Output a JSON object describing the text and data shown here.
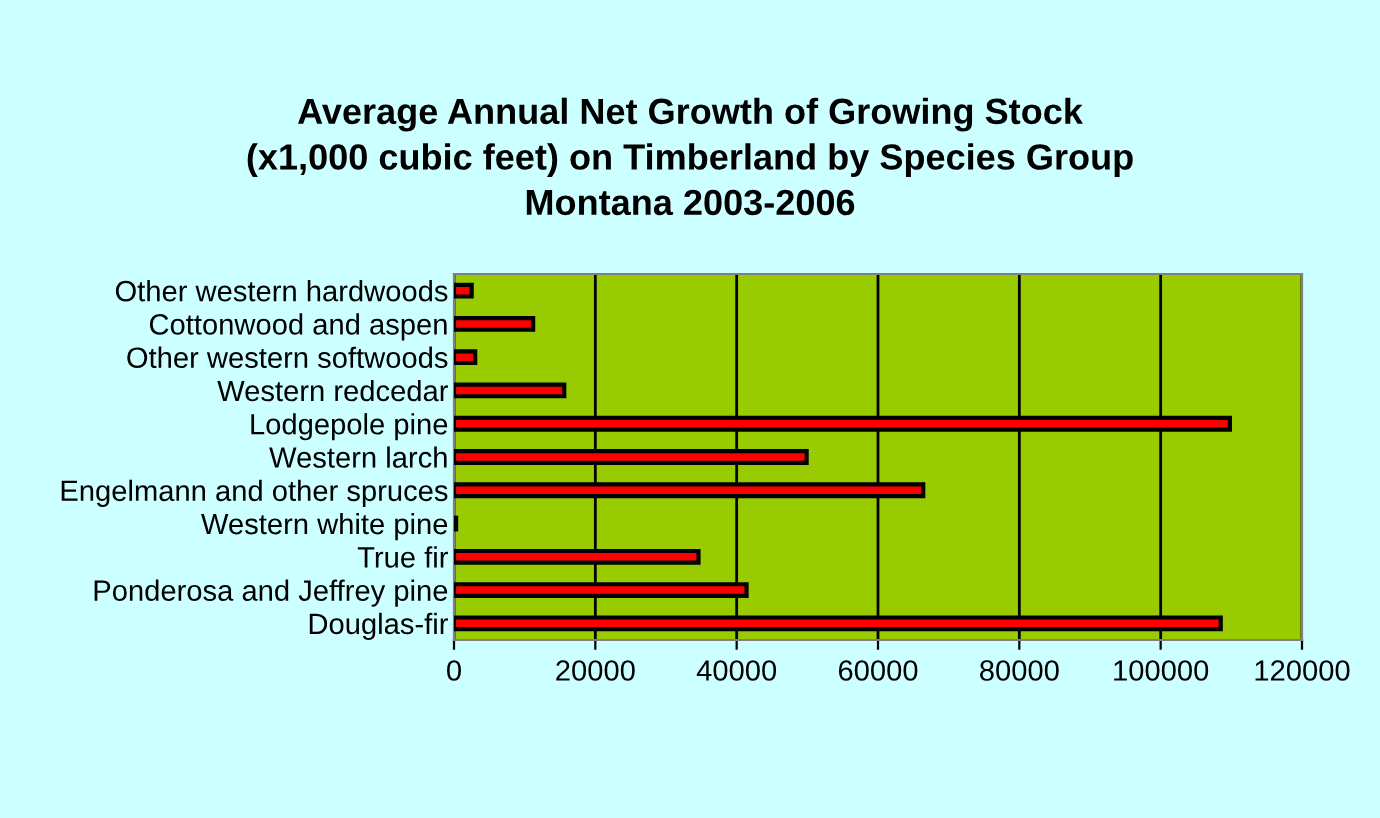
{
  "chart_data": {
    "type": "bar",
    "orientation": "horizontal",
    "title": "Average Annual Net Growth of Growing Stock\n(x1,000 cubic feet) on Timberland by Species Group\nMontana 2003-2006",
    "categories": [
      "Other western hardwoods",
      "Cottonwood and aspen",
      "Other western softwoods",
      "Western redcedar",
      "Lodgepole pine",
      "Western larch",
      "Engelmann and other spruces",
      "Western white pine",
      "True fir",
      "Ponderosa and Jeffrey pine",
      "Douglas-fir"
    ],
    "values": [
      2500,
      11200,
      3000,
      15600,
      109800,
      49900,
      66400,
      300,
      34600,
      41400,
      108500
    ],
    "color": "#ff0000",
    "xlim": [
      0,
      120000
    ],
    "xticks": [
      0,
      20000,
      40000,
      60000,
      80000,
      100000,
      120000
    ],
    "grid": "x"
  }
}
